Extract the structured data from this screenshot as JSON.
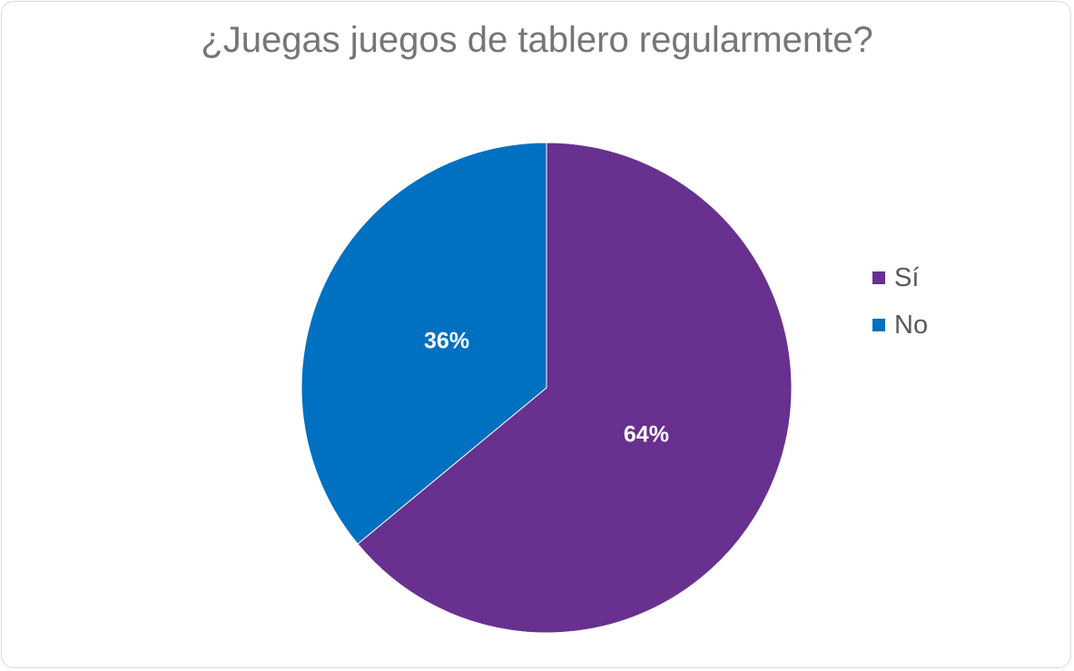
{
  "chart_data": {
    "type": "pie",
    "title": "¿Juegas juegos de tablero regularmente?",
    "categories": [
      "Sí",
      "No"
    ],
    "values": [
      64,
      36
    ],
    "data_labels": [
      "64%",
      "36%"
    ],
    "colors": [
      "#68308F",
      "#0070C0"
    ],
    "legend_position": "right",
    "start_angle_deg": 0,
    "direction": "clockwise"
  }
}
